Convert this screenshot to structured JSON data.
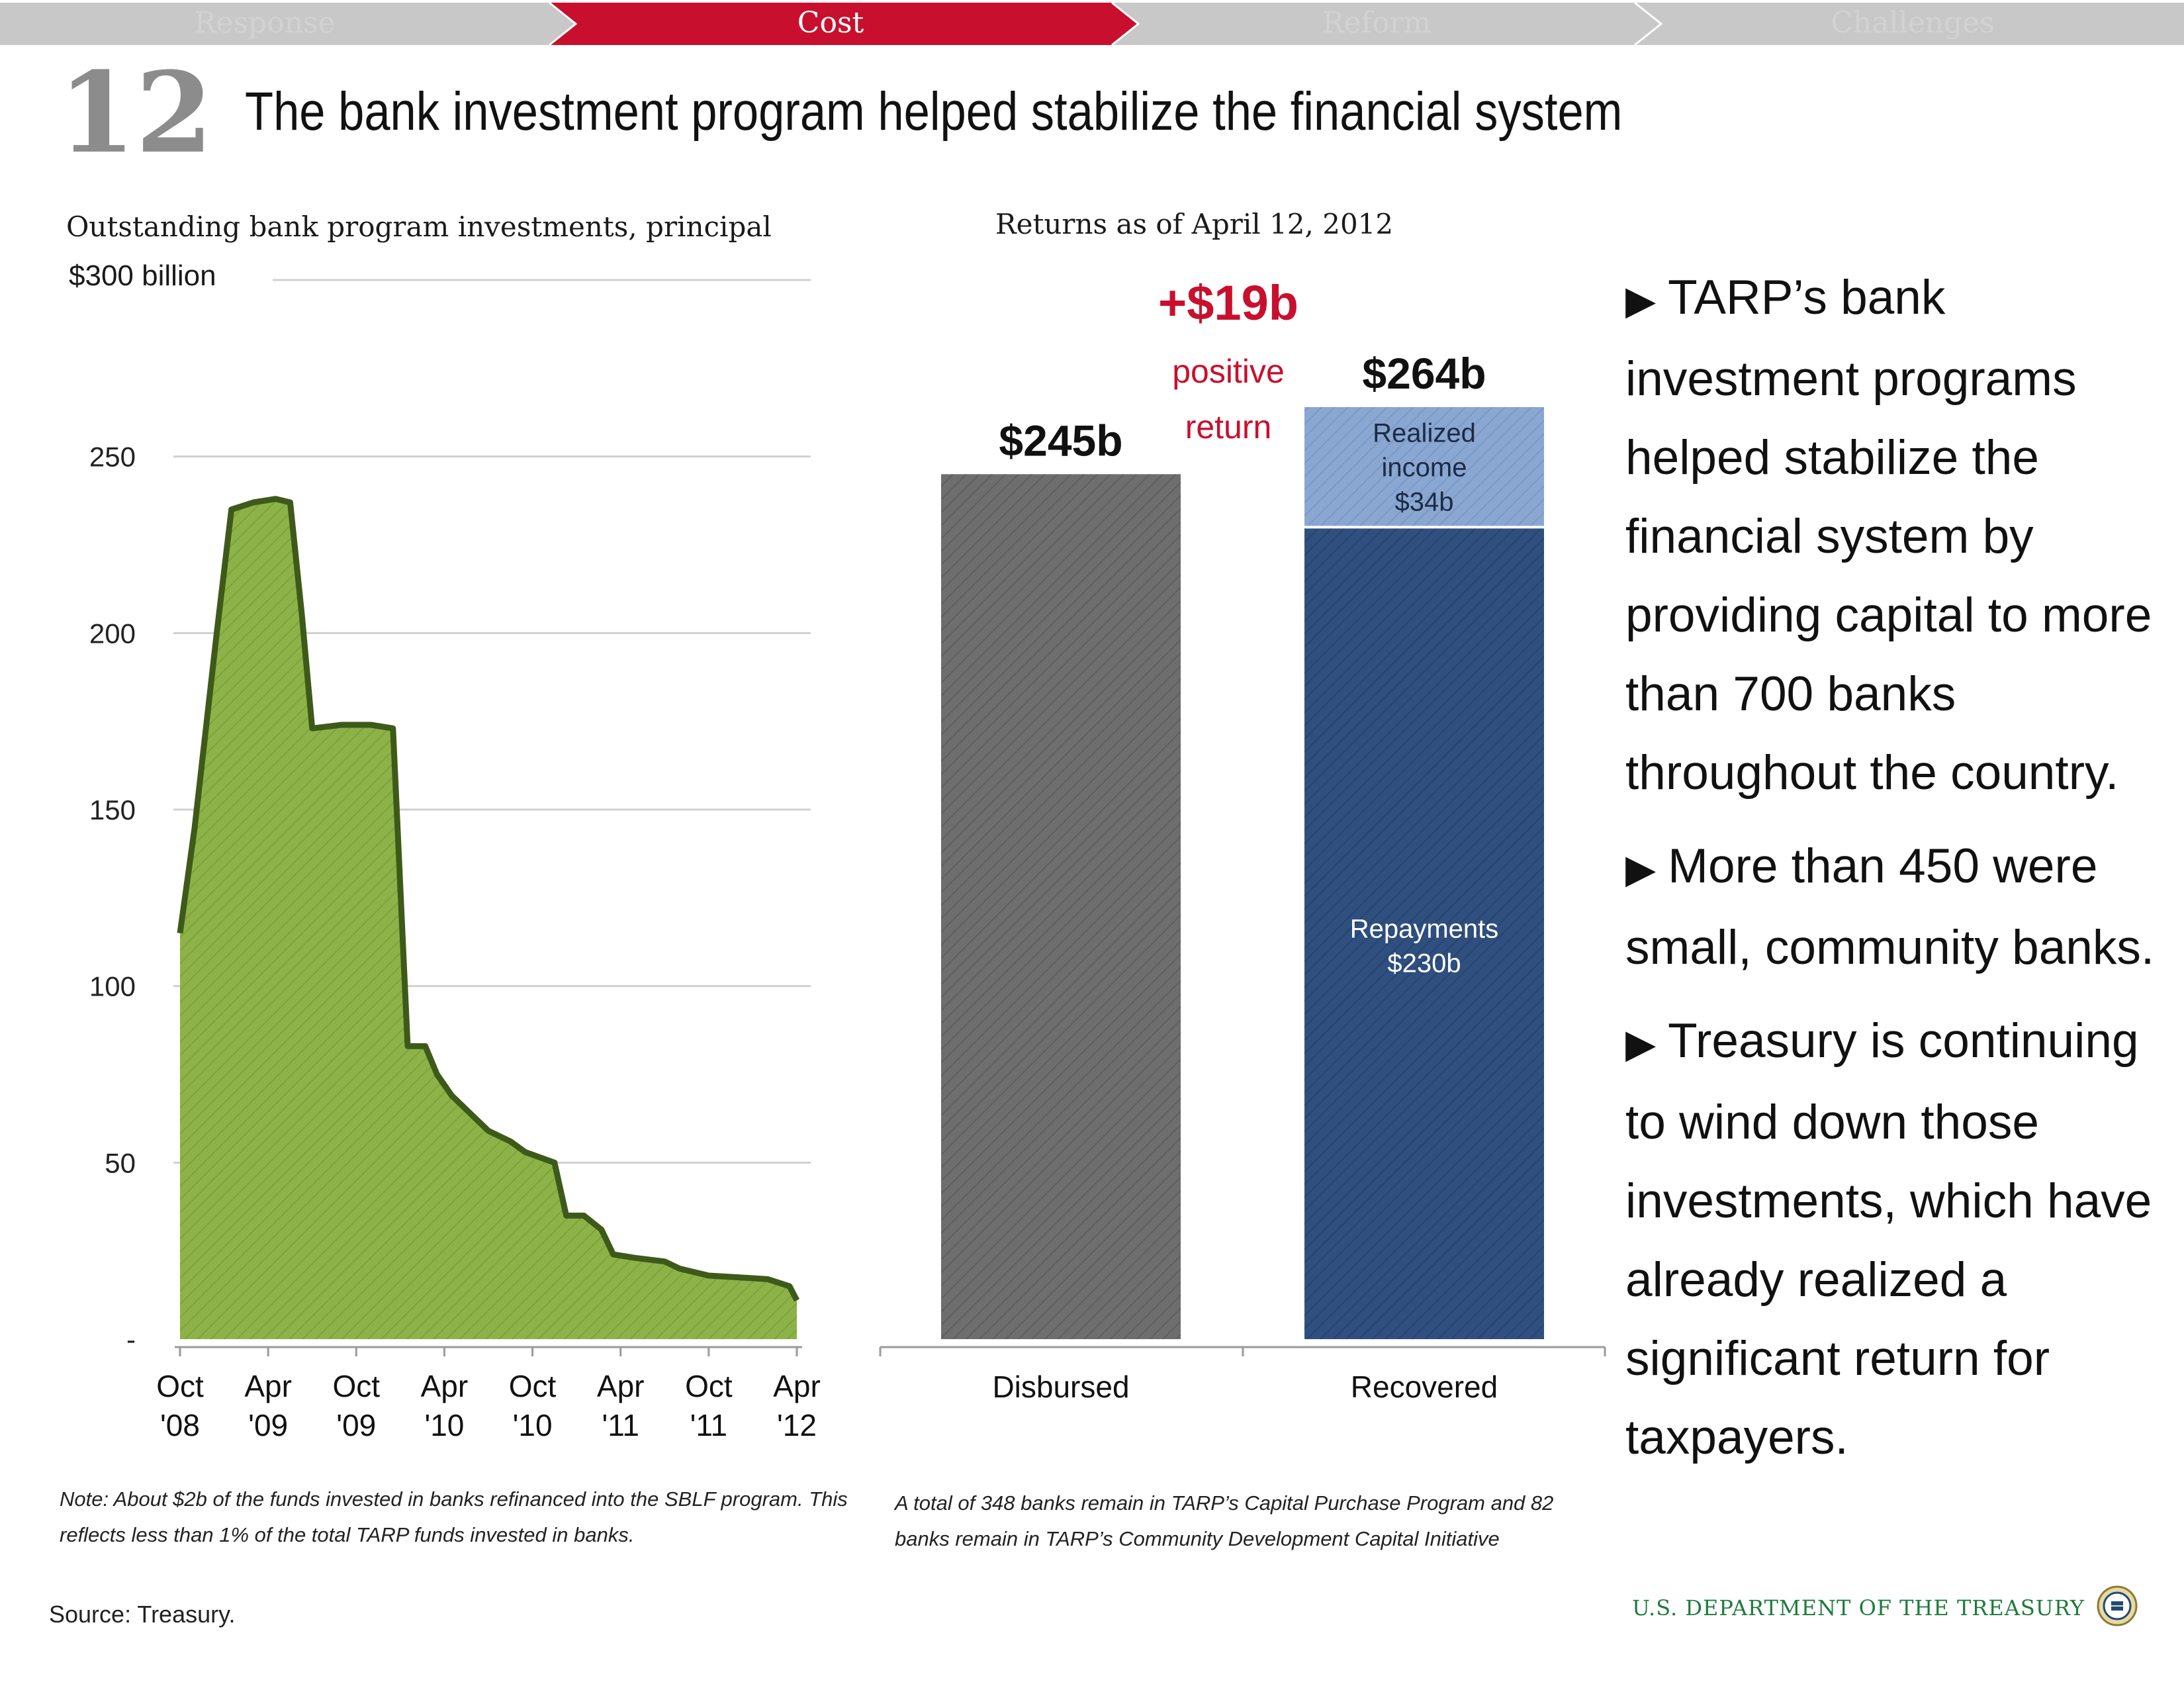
{
  "nav": {
    "items": [
      {
        "label": "Response",
        "active": false
      },
      {
        "label": "Cost",
        "active": true
      },
      {
        "label": "Reform",
        "active": false
      },
      {
        "label": "Challenges",
        "active": false
      }
    ],
    "active_color": "#c8102e",
    "inactive_color": "#c8c8c8"
  },
  "header": {
    "slide_number": "12",
    "title": "The bank investment program helped stabilize the financial system"
  },
  "chart_data": [
    {
      "type": "area",
      "title": "Outstanding bank program investments, principal",
      "y_top_label": "$300 billion",
      "ylim": [
        0,
        300
      ],
      "y_ticks": [
        {
          "value": 0,
          "label": "-"
        },
        {
          "value": 50,
          "label": "50"
        },
        {
          "value": 100,
          "label": "100"
        },
        {
          "value": 150,
          "label": "150"
        },
        {
          "value": 200,
          "label": "200"
        },
        {
          "value": 250,
          "label": "250"
        }
      ],
      "x_unit": "months since Oct '08",
      "xlim": [
        0,
        42
      ],
      "x_ticks": [
        {
          "month": 0,
          "label": [
            "Oct",
            "'08"
          ]
        },
        {
          "month": 6,
          "label": [
            "Apr",
            "'09"
          ]
        },
        {
          "month": 12,
          "label": [
            "Oct",
            "'09"
          ]
        },
        {
          "month": 18,
          "label": [
            "Apr",
            "'10"
          ]
        },
        {
          "month": 24,
          "label": [
            "Oct",
            "'10"
          ]
        },
        {
          "month": 30,
          "label": [
            "Apr",
            "'11"
          ]
        },
        {
          "month": 36,
          "label": [
            "Oct",
            "'11"
          ]
        },
        {
          "month": 42,
          "label": [
            "Apr",
            "'12"
          ]
        }
      ],
      "series": [
        {
          "x": [
            0,
            1,
            2.5,
            3.5,
            5,
            6.5,
            7.5,
            8.3,
            9,
            11,
            13,
            14.5,
            15.5,
            16.7,
            17.5,
            18.5,
            21,
            22.5,
            23.5,
            25.5,
            26.3,
            27.5,
            28.7,
            29.5,
            31,
            33,
            34,
            36,
            38,
            40,
            41.5,
            42
          ],
          "y": [
            115,
            145,
            200,
            235,
            237,
            238,
            237,
            205,
            173,
            174,
            174,
            173,
            83,
            83,
            75,
            69,
            59,
            56,
            53,
            50,
            35,
            35,
            31,
            24,
            23,
            22,
            20,
            18,
            17.5,
            17,
            15,
            11
          ]
        }
      ],
      "colors": {
        "fill": "#8db348",
        "line": "#3e5a1a"
      }
    },
    {
      "type": "bar",
      "title": "Returns as of April 12, 2012",
      "categories": [
        "Disbursed",
        "Recovered"
      ],
      "series": [
        {
          "name": "Disbursed",
          "values": [
            245,
            0
          ],
          "label": "",
          "color": "#6e6e6e"
        },
        {
          "name": "Repayments",
          "values": [
            0,
            230
          ],
          "label": "Repayments\n$230b",
          "color": "#2f4f7f"
        },
        {
          "name": "Realized income",
          "values": [
            0,
            34
          ],
          "label": "Realized\nincome\n$34b",
          "color": "#8aa7d2"
        }
      ],
      "totals": [
        {
          "value": 245,
          "label": "$245b"
        },
        {
          "value": 264,
          "label": "$264b"
        }
      ],
      "annotation": {
        "value": "+$19b",
        "text": [
          "positive",
          "return"
        ],
        "color": "#c8102e"
      },
      "ylim": [
        0,
        300
      ],
      "stacked": true
    }
  ],
  "notes": {
    "left": [
      "Note: About $2b of the funds invested in banks refinanced into the SBLF program. This",
      "reflects less than 1% of the total TARP funds invested in banks."
    ],
    "right": [
      "A total of 348 banks remain in TARP’s Capital Purchase Program and 82",
      "banks remain in TARP’s Community Development Capital Initiative"
    ],
    "source": "Source: Treasury."
  },
  "bullets": [
    {
      "icon": "triangle-right-icon",
      "text": "TARP’s bank investment programs helped stabilize the financial system by providing capital to more than 700 banks throughout the country."
    },
    {
      "icon": "triangle-right-icon",
      "text": "More than 450 were small, community banks."
    },
    {
      "icon": "triangle-right-icon",
      "text": "Treasury is continuing to wind down those investments, which have already realized a significant return for taxpayers."
    }
  ],
  "footer": {
    "department": "U.S. DEPARTMENT OF THE TREASURY",
    "seal_icon": "treasury-seal-icon"
  }
}
